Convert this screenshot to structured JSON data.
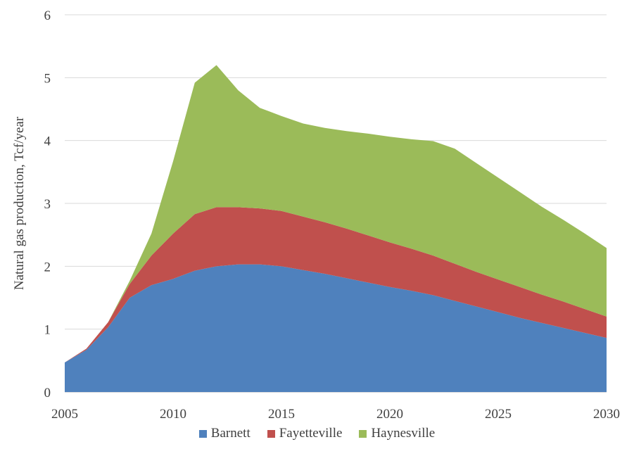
{
  "chart_data": {
    "type": "area",
    "stacked": true,
    "title": "",
    "xlabel": "",
    "ylabel": "Natural gas production, Tcf/year",
    "xlim": [
      2005,
      2030
    ],
    "ylim": [
      0,
      6
    ],
    "x_ticks": [
      "2005",
      "2010",
      "2015",
      "2020",
      "2025",
      "2030"
    ],
    "y_ticks": [
      "0",
      "1",
      "2",
      "3",
      "4",
      "5",
      "6"
    ],
    "grid": "horizontal",
    "legend_position": "bottom",
    "x": [
      2005,
      2006,
      2007,
      2008,
      2009,
      2010,
      2011,
      2012,
      2013,
      2014,
      2015,
      2016,
      2017,
      2018,
      2019,
      2020,
      2021,
      2022,
      2023,
      2024,
      2025,
      2026,
      2027,
      2028,
      2029,
      2030
    ],
    "series": [
      {
        "name": "Barnett",
        "color": "#4f81bd",
        "values": [
          0.47,
          0.67,
          1.03,
          1.5,
          1.7,
          1.8,
          1.93,
          2.0,
          2.03,
          2.03,
          2.0,
          1.94,
          1.88,
          1.81,
          1.74,
          1.67,
          1.61,
          1.54,
          1.45,
          1.36,
          1.27,
          1.18,
          1.1,
          1.02,
          0.94,
          0.86
        ]
      },
      {
        "name": "Fayetteville",
        "color": "#c0504d",
        "values": [
          0.0,
          0.02,
          0.08,
          0.22,
          0.47,
          0.72,
          0.9,
          0.94,
          0.91,
          0.89,
          0.88,
          0.85,
          0.82,
          0.79,
          0.75,
          0.71,
          0.67,
          0.63,
          0.59,
          0.55,
          0.52,
          0.49,
          0.45,
          0.42,
          0.38,
          0.34
        ]
      },
      {
        "name": "Haynesville",
        "color": "#9bbb59",
        "values": [
          0.0,
          0.0,
          0.0,
          0.05,
          0.35,
          1.15,
          2.09,
          2.26,
          1.86,
          1.6,
          1.51,
          1.48,
          1.5,
          1.55,
          1.62,
          1.68,
          1.74,
          1.82,
          1.83,
          1.73,
          1.62,
          1.51,
          1.4,
          1.3,
          1.2,
          1.09
        ]
      }
    ]
  }
}
